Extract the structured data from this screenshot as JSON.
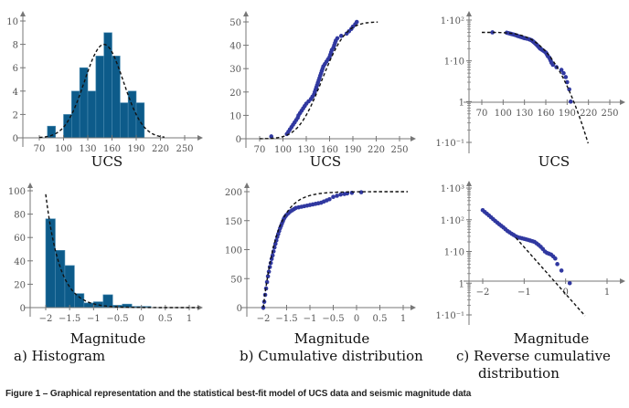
{
  "colors": {
    "bar": "#0d5b8a",
    "bar_edge": "#4d8db3",
    "points": "#3038a0",
    "fit": "#111111",
    "axis": "#777777"
  },
  "panel_captions": {
    "a": "a) Histogram",
    "b": "b) Cumulative distribution",
    "c_line1": "c)  Reverse cumulative",
    "c_line2": "distribution"
  },
  "figure_caption": "Figure 1 – Graphical representation and the statistical best-fit model of UCS data and seismic magnitude data",
  "chart_data": [
    {
      "id": "ucs-histogram",
      "type": "bar",
      "xlabel": "UCS",
      "ylabel": "",
      "xticks": [
        70,
        100,
        130,
        160,
        190,
        220,
        250
      ],
      "yticks": [
        0,
        2,
        4,
        6,
        8,
        10
      ],
      "xlim": [
        55,
        265
      ],
      "ylim": [
        0,
        10.5
      ],
      "bin_edges": [
        80,
        90,
        100,
        110,
        120,
        130,
        140,
        150,
        160,
        170,
        180,
        190,
        200
      ],
      "values": [
        1,
        0,
        2,
        4,
        6,
        4,
        7,
        9,
        7,
        3,
        4,
        3
      ],
      "fit": {
        "type": "normal",
        "mean": 150,
        "sd": 24,
        "peak": 8,
        "x_range": [
          70,
          225
        ]
      }
    },
    {
      "id": "ucs-cumulative",
      "type": "scatter",
      "xlabel": "UCS",
      "ylabel": "",
      "xticks": [
        70,
        100,
        130,
        160,
        190,
        220,
        250
      ],
      "yticks": [
        0,
        10,
        20,
        30,
        40,
        50
      ],
      "xlim": [
        55,
        265
      ],
      "ylim": [
        0,
        52
      ],
      "points_x": [
        85,
        105,
        107,
        109,
        111,
        113,
        115,
        117,
        119,
        120,
        122,
        124,
        126,
        128,
        130,
        133,
        136,
        138,
        140,
        141,
        142,
        143,
        144,
        145,
        146,
        147,
        148,
        149,
        150,
        151,
        152,
        154,
        156,
        158,
        160,
        161,
        162,
        163,
        165,
        166,
        167,
        168,
        170,
        175,
        182,
        185,
        188,
        190,
        193,
        195
      ],
      "points_y": [
        1,
        2,
        3,
        4,
        5,
        6,
        7,
        8,
        9,
        10,
        11,
        12,
        13,
        14,
        15,
        16,
        17,
        18,
        19,
        20,
        21,
        22,
        23,
        24,
        25,
        26,
        27,
        28,
        29,
        30,
        31,
        32,
        33,
        34,
        35,
        36,
        37,
        38,
        39,
        40,
        41,
        42,
        43,
        44,
        45,
        46,
        47,
        48,
        49,
        50
      ],
      "fit": {
        "type": "normal-cdf",
        "mean": 150,
        "sd": 24,
        "total": 50,
        "x_range": [
          70,
          222
        ]
      }
    },
    {
      "id": "ucs-reverse-cumulative",
      "type": "scatter",
      "xlabel": "UCS",
      "ylabel": "",
      "yscale": "log",
      "xticks": [
        70,
        100,
        130,
        160,
        190,
        220,
        250
      ],
      "yticks": [
        0.1,
        1,
        10,
        100
      ],
      "ytick_labels": [
        "1·10⁻¹",
        "1",
        "1·10",
        "1·10²"
      ],
      "xlim": [
        55,
        265
      ],
      "ylim": [
        0.07,
        140
      ],
      "points_x": [
        85,
        105,
        107,
        109,
        111,
        113,
        115,
        117,
        119,
        120,
        122,
        124,
        126,
        128,
        130,
        133,
        136,
        138,
        140,
        141,
        142,
        143,
        144,
        145,
        146,
        147,
        148,
        149,
        150,
        151,
        152,
        154,
        156,
        158,
        160,
        161,
        162,
        163,
        165,
        166,
        167,
        168,
        170,
        175,
        182,
        185,
        188,
        190,
        193,
        195
      ],
      "points_y": [
        50,
        49,
        48,
        47,
        46,
        45,
        44,
        43,
        42,
        41,
        40,
        39,
        38,
        37,
        36,
        35,
        34,
        33,
        32,
        31,
        30,
        29,
        28,
        27,
        26,
        25,
        24,
        23,
        22,
        21,
        20,
        19,
        18,
        17,
        16,
        15,
        14,
        13,
        12,
        11,
        10,
        9,
        8,
        7,
        6,
        5,
        4,
        3,
        2,
        1
      ],
      "fit": {
        "type": "normal-survival",
        "mean": 150,
        "sd": 24,
        "total": 50,
        "x_range": [
          70,
          222
        ]
      }
    },
    {
      "id": "magnitude-histogram",
      "type": "bar",
      "xlabel": "Magnitude",
      "ylabel": "",
      "xticks": [
        -2,
        -1.5,
        -1,
        -0.5,
        0,
        0.5,
        1
      ],
      "xtick_labels": [
        "−2",
        "−1.5",
        "−1",
        "−0.5",
        "0",
        "0.5",
        "1"
      ],
      "yticks": [
        0,
        20,
        40,
        60,
        80,
        100
      ],
      "xlim": [
        -2.25,
        1.25
      ],
      "ylim": [
        0,
        105
      ],
      "bin_edges": [
        -2,
        -1.8,
        -1.6,
        -1.4,
        -1.2,
        -1.0,
        -0.8,
        -0.6,
        -0.4,
        -0.2,
        0.0,
        0.2
      ],
      "values": [
        76,
        49,
        36,
        12,
        4,
        5,
        11,
        2,
        3,
        1,
        1
      ],
      "fit": {
        "type": "exponential",
        "a": 97,
        "b": 3.4,
        "x0": -2,
        "x_range": [
          -2,
          1.2
        ]
      }
    },
    {
      "id": "magnitude-cumulative",
      "type": "scatter",
      "xlabel": "Magnitude",
      "ylabel": "",
      "xticks": [
        -2,
        -1.5,
        -1,
        -0.5,
        0,
        0.5,
        1
      ],
      "xtick_labels": [
        "−2",
        "−1.5",
        "−1",
        "−0.5",
        "0",
        "0.5",
        "1"
      ],
      "yticks": [
        0,
        50,
        100,
        150,
        200
      ],
      "xlim": [
        -2.25,
        1.25
      ],
      "ylim": [
        0,
        210
      ],
      "points_x": [
        -2.0,
        -1.98,
        -1.96,
        -1.94,
        -1.92,
        -1.9,
        -1.88,
        -1.86,
        -1.84,
        -1.82,
        -1.8,
        -1.78,
        -1.76,
        -1.74,
        -1.72,
        -1.7,
        -1.68,
        -1.66,
        -1.64,
        -1.62,
        -1.6,
        -1.58,
        -1.56,
        -1.54,
        -1.52,
        -1.5,
        -1.46,
        -1.42,
        -1.38,
        -1.34,
        -1.3,
        -1.24,
        -1.18,
        -1.12,
        -1.06,
        -1.0,
        -0.94,
        -0.88,
        -0.82,
        -0.76,
        -0.7,
        -0.64,
        -0.58,
        -0.5,
        -0.42,
        -0.34,
        -0.26,
        -0.2,
        -0.1,
        0.1
      ],
      "points_y": [
        0,
        10,
        22,
        33,
        44,
        54,
        62,
        70,
        77,
        84,
        90,
        97,
        104,
        110,
        116,
        122,
        127,
        132,
        137,
        141,
        145,
        149,
        153,
        156,
        158,
        160,
        163,
        166,
        168,
        170,
        172,
        173,
        174,
        175,
        176,
        177,
        178,
        179,
        180,
        181,
        183,
        185,
        187,
        191,
        193,
        195,
        196,
        197,
        198,
        199
      ],
      "fit": {
        "type": "exponential-cdf",
        "total": 200,
        "b": 3.4,
        "x0": -2,
        "x_range": [
          -2,
          1.1
        ]
      }
    },
    {
      "id": "magnitude-reverse-cumulative",
      "type": "scatter",
      "xlabel": "Magnitude",
      "ylabel": "",
      "yscale": "log",
      "xticks": [
        -2,
        -1,
        0,
        1
      ],
      "xtick_labels": [
        "−2",
        "−1",
        "0",
        "1"
      ],
      "yticks": [
        0.1,
        1,
        10,
        100,
        1000
      ],
      "ytick_labels": [
        "1·10⁻¹",
        "1",
        "1·10",
        "1·10²",
        "1·10³"
      ],
      "xlim": [
        -2.35,
        1.3
      ],
      "ylim": [
        0.05,
        1400
      ],
      "points_x": [
        -2.0,
        -1.95,
        -1.9,
        -1.85,
        -1.8,
        -1.75,
        -1.7,
        -1.65,
        -1.6,
        -1.55,
        -1.5,
        -1.45,
        -1.4,
        -1.35,
        -1.3,
        -1.25,
        -1.2,
        -1.15,
        -1.1,
        -1.05,
        -1.0,
        -0.95,
        -0.9,
        -0.85,
        -0.8,
        -0.75,
        -0.7,
        -0.65,
        -0.6,
        -0.55,
        -0.5,
        -0.45,
        -0.4,
        -0.35,
        -0.3,
        -0.25,
        -0.2,
        -0.1,
        0.1
      ],
      "points_y": [
        200,
        175,
        155,
        137,
        120,
        105,
        92,
        81,
        72,
        64,
        57,
        50,
        44,
        40,
        36,
        33,
        30,
        28,
        27,
        26,
        25,
        24,
        23,
        22,
        21,
        20,
        18,
        16,
        14,
        12,
        10,
        9,
        8.5,
        8,
        7,
        6,
        4,
        2.5,
        1
      ],
      "fit": {
        "type": "gutenberg-richter",
        "a": 2.3,
        "b": 1.475,
        "x_range": [
          -1.2,
          1.1
        ]
      }
    }
  ]
}
